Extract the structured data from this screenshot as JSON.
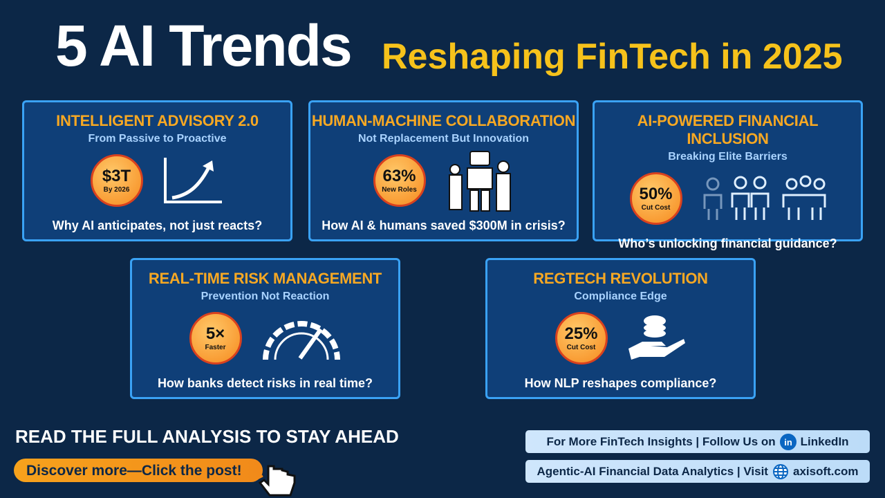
{
  "header": {
    "title_main": "5 AI Trends",
    "title_accent": "Reshaping FinTech in 2025"
  },
  "cards": [
    {
      "title": "INTELLIGENT ADVISORY 2.0",
      "subtitle": "From Passive to Proactive",
      "badge_value": "$3T",
      "badge_label": "By 2026",
      "question": "Why AI anticipates, not just reacts?"
    },
    {
      "title": "HUMAN-MACHINE COLLABORATION",
      "subtitle": "Not Replacement But Innovation",
      "badge_value": "63%",
      "badge_label": "New Roles",
      "question": "How AI & humans saved $300M in crisis?"
    },
    {
      "title": "AI-POWERED FINANCIAL INCLUSION",
      "subtitle": "Breaking Elite Barriers",
      "badge_value": "50%",
      "badge_label": "Cut Cost",
      "question": "Who’s unlocking financial guidance?"
    },
    {
      "title": "REAL-TIME RISK MANAGEMENT",
      "subtitle": "Prevention Not Reaction",
      "badge_value": "5×",
      "badge_label": "Faster",
      "question": "How banks detect risks in real time?"
    },
    {
      "title": "REGTECH REVOLUTION",
      "subtitle": "Compliance Edge",
      "badge_value": "25%",
      "badge_label": "Cut Cost",
      "question": "How NLP reshapes compliance?"
    }
  ],
  "footer": {
    "cta_heading": "READ THE FULL ANALYSIS TO STAY AHEAD",
    "cta_button": "Discover more—Click the post!",
    "links": [
      {
        "text": "For More FinTech Insights | Follow Us on",
        "target": "LinkedIn"
      },
      {
        "text": "Agentic-AI Financial Data Analytics | Visit",
        "target": "axisoft.com"
      }
    ]
  }
}
